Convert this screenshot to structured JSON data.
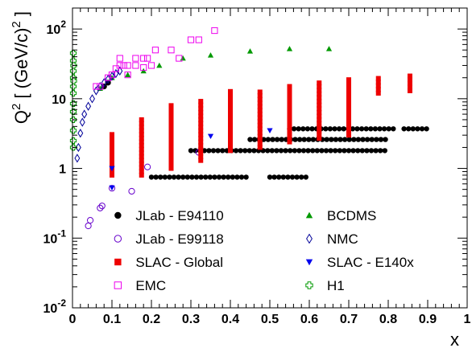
{
  "chart_data": {
    "type": "scatter",
    "xlabel": "x",
    "ylabel": "Q^2 [ (GeV/c)^2 ]",
    "xlim": [
      0,
      1
    ],
    "ylim": [
      0.01,
      200
    ],
    "yscale": "log",
    "grid": false,
    "legend_position": "bottom-right",
    "x_ticks": [
      "0",
      "0.1",
      "0.2",
      "0.3",
      "0.4",
      "0.5",
      "0.6",
      "0.7",
      "0.8",
      "0.9",
      "1"
    ],
    "y_ticks": [
      {
        "value": 0.01,
        "base": "10",
        "exp": "-2"
      },
      {
        "value": 0.1,
        "base": "10",
        "exp": "-1"
      },
      {
        "value": 1,
        "base": "1",
        "exp": ""
      },
      {
        "value": 10,
        "base": "10",
        "exp": ""
      },
      {
        "value": 100,
        "base": "10",
        "exp": "2"
      }
    ],
    "series": [
      {
        "name": "JLab - E94110",
        "color": "#000000",
        "marker": "circle-filled",
        "bands": [
          {
            "x_start": 0.2,
            "x_end": 0.45,
            "y": 0.75
          },
          {
            "x_start": 0.5,
            "x_end": 0.6,
            "y": 0.75
          },
          {
            "x_start": 0.3,
            "x_end": 0.8,
            "y": 1.8
          },
          {
            "x_start": 0.45,
            "x_end": 0.8,
            "y": 2.6
          },
          {
            "x_start": 0.55,
            "x_end": 0.82,
            "y": 3.7
          },
          {
            "x_start": 0.84,
            "x_end": 0.9,
            "y": 3.7
          }
        ],
        "points": [
          [
            0.08,
            15
          ],
          [
            0.09,
            17
          ]
        ]
      },
      {
        "name": "BCDMS",
        "color": "#009900",
        "marker": "triangle-up",
        "points": [
          [
            0.07,
            14
          ],
          [
            0.1,
            20
          ],
          [
            0.14,
            22
          ],
          [
            0.18,
            25
          ],
          [
            0.22,
            30
          ],
          [
            0.28,
            38
          ],
          [
            0.35,
            42
          ],
          [
            0.45,
            48
          ],
          [
            0.55,
            52
          ],
          [
            0.65,
            52
          ]
        ]
      },
      {
        "name": "JLab - E99118",
        "color": "#6600cc",
        "marker": "circle-open",
        "points": [
          [
            0.04,
            0.15
          ],
          [
            0.045,
            0.18
          ],
          [
            0.07,
            0.27
          ],
          [
            0.075,
            0.29
          ],
          [
            0.1,
            0.52
          ],
          [
            0.15,
            0.47
          ],
          [
            0.19,
            1.05
          ],
          [
            0.32,
            1.7
          ]
        ]
      },
      {
        "name": "NMC",
        "color": "#000099",
        "marker": "diamond-open",
        "points": [
          [
            0.012,
            1.4
          ],
          [
            0.015,
            2.0
          ],
          [
            0.02,
            3.2
          ],
          [
            0.025,
            4.6
          ],
          [
            0.03,
            6.0
          ],
          [
            0.04,
            7.8
          ],
          [
            0.05,
            10
          ],
          [
            0.06,
            13
          ],
          [
            0.07,
            15
          ],
          [
            0.08,
            17
          ],
          [
            0.09,
            19
          ],
          [
            0.1,
            21
          ],
          [
            0.11,
            23
          ],
          [
            0.12,
            25
          ]
        ]
      },
      {
        "name": "SLAC - Global",
        "color": "#ee0000",
        "marker": "square-filled",
        "bands_vertical": [
          {
            "x": 0.1,
            "y_min": 0.8,
            "y_max": 3.2
          },
          {
            "x": 0.175,
            "y_min": 0.8,
            "y_max": 5.5
          },
          {
            "x": 0.25,
            "y_min": 1.0,
            "y_max": 8.0
          },
          {
            "x": 0.325,
            "y_min": 1.3,
            "y_max": 10
          },
          {
            "x": 0.4,
            "y_min": 1.8,
            "y_max": 13
          },
          {
            "x": 0.475,
            "y_min": 2.0,
            "y_max": 14
          },
          {
            "x": 0.55,
            "y_min": 2.4,
            "y_max": 16
          },
          {
            "x": 0.625,
            "y_min": 2.7,
            "y_max": 18
          },
          {
            "x": 0.7,
            "y_min": 3.0,
            "y_max": 20
          },
          {
            "x": 0.775,
            "y_min": 12,
            "y_max": 22
          },
          {
            "x": 0.855,
            "y_min": 13,
            "y_max": 23
          }
        ]
      },
      {
        "name": "SLAC - E140x",
        "color": "#0000ee",
        "marker": "triangle-down",
        "points": [
          [
            0.1,
            0.53
          ],
          [
            0.1,
            1.0
          ],
          [
            0.35,
            2.9
          ],
          [
            0.5,
            3.5
          ]
        ]
      },
      {
        "name": "EMC",
        "color": "#ee00ee",
        "marker": "square-open",
        "points": [
          [
            0.06,
            15
          ],
          [
            0.07,
            15
          ],
          [
            0.09,
            20
          ],
          [
            0.1,
            22
          ],
          [
            0.11,
            27
          ],
          [
            0.12,
            30
          ],
          [
            0.13,
            30
          ],
          [
            0.14,
            30
          ],
          [
            0.14,
            22
          ],
          [
            0.16,
            38
          ],
          [
            0.18,
            38
          ],
          [
            0.18,
            28
          ],
          [
            0.19,
            38
          ],
          [
            0.2,
            30
          ],
          [
            0.21,
            50
          ],
          [
            0.25,
            50
          ],
          [
            0.27,
            38
          ],
          [
            0.3,
            70
          ],
          [
            0.32,
            70
          ],
          [
            0.36,
            95
          ],
          [
            0.16,
            30
          ],
          [
            0.12,
            38
          ]
        ]
      },
      {
        "name": "H1",
        "color": "#009900",
        "marker": "cross-open",
        "points": [
          [
            0.002,
            2.0
          ],
          [
            0.002,
            2.5
          ],
          [
            0.002,
            3.5
          ],
          [
            0.002,
            5
          ],
          [
            0.002,
            6.5
          ],
          [
            0.002,
            8.5
          ],
          [
            0.002,
            12
          ],
          [
            0.002,
            15
          ],
          [
            0.002,
            20
          ],
          [
            0.002,
            25
          ],
          [
            0.002,
            35
          ],
          [
            0.002,
            45
          ],
          [
            0.003,
            30
          ],
          [
            0.003,
            18
          ]
        ]
      }
    ]
  }
}
